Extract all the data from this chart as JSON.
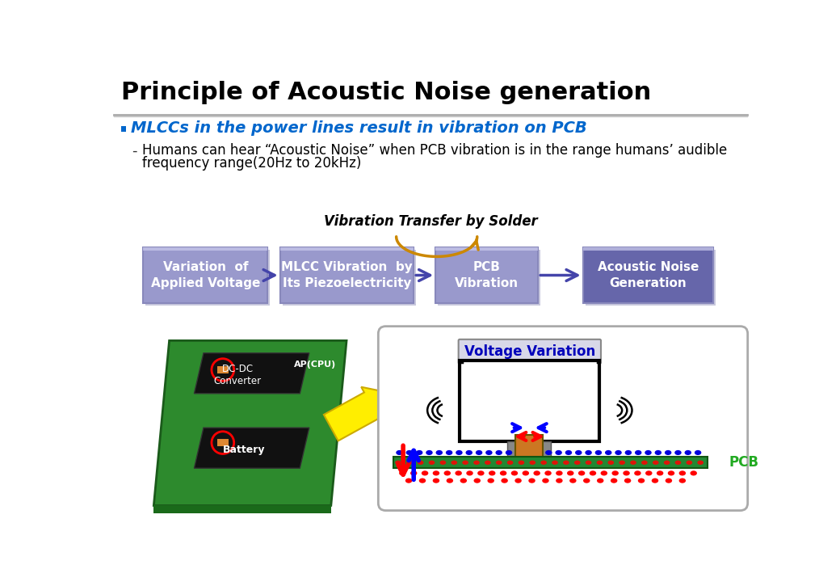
{
  "title": "Principle of Acoustic Noise generation",
  "bullet_text": "MLCCs in the power lines result in vibration on PCB",
  "sub_text1": "Humans can hear “Acoustic Noise” when PCB vibration is in the range humans’ audible",
  "sub_text2": "frequency range(20Hz to 20kHz)",
  "flow_title": "Vibration Transfer by Solder",
  "flow_boxes": [
    "Variation  of\nApplied Voltage",
    "MLCC Vibration  by\nIts Piezoelectricity",
    "PCB\nVibration",
    "Acoustic Noise\nGeneration"
  ],
  "box_colors": [
    "#9999cc",
    "#9999cc",
    "#9999cc",
    "#6666aa"
  ],
  "arrow_color": "#4444aa",
  "voltage_variation_label": "Voltage Variation",
  "pcb_label": "PCB",
  "bg_color": "#ffffff",
  "title_color": "#000000",
  "bullet_color": "#0066cc",
  "sub_color": "#000000",
  "flow_title_color": "#000000",
  "green_color": "#228822",
  "orange_color": "#cc7722",
  "sep_color1": "#aaaaaa",
  "sep_color2": "#cccccc"
}
